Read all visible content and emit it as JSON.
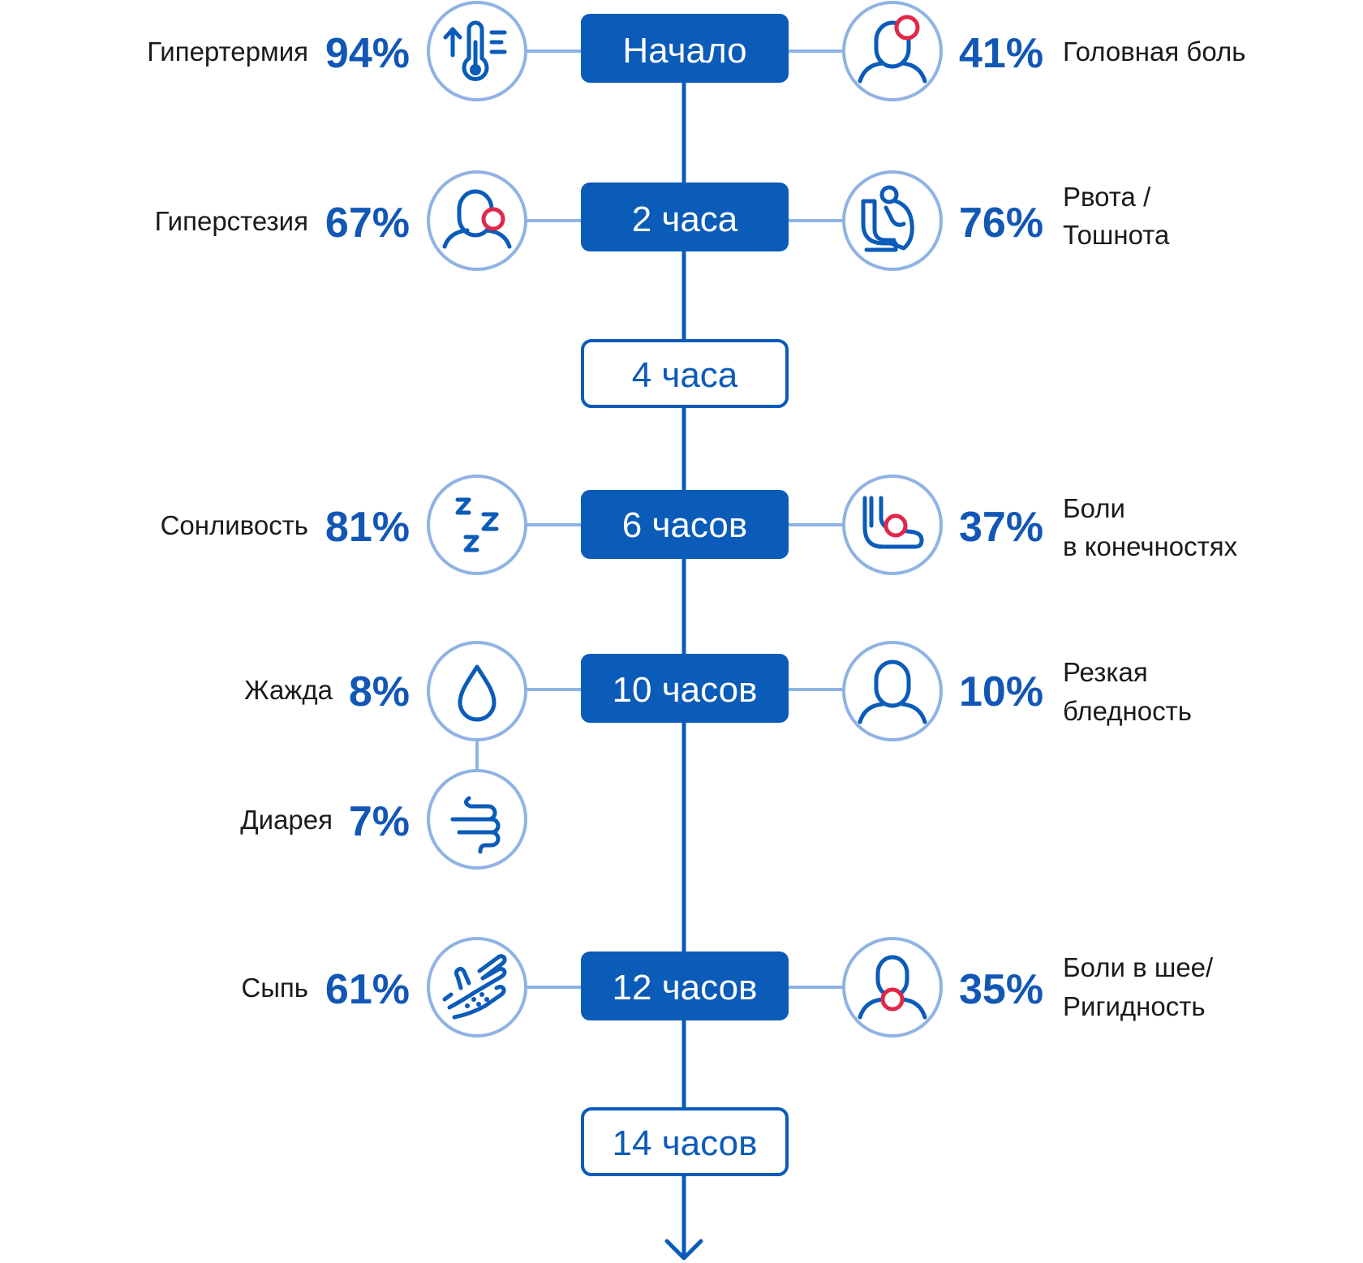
{
  "colors": {
    "primary": "#0b5bb8",
    "connector": "#8fb3e3",
    "accent": "#e0294a",
    "text": "#1a1a1a",
    "percent": "#1257b5"
  },
  "stages": [
    {
      "label": "Начало",
      "style": "filled"
    },
    {
      "label": "2 часа",
      "style": "filled"
    },
    {
      "label": "4 часа",
      "style": "outline"
    },
    {
      "label": "6 часов",
      "style": "filled"
    },
    {
      "label": "10 часов",
      "style": "filled"
    },
    {
      "label": "12 часов",
      "style": "filled"
    },
    {
      "label": "14 часов",
      "style": "outline"
    }
  ],
  "symptoms": {
    "hyperthermia": {
      "label": [
        "Гипертермия"
      ],
      "percent": "94%",
      "icon": "thermometer-icon"
    },
    "headache": {
      "label": [
        "Головная боль"
      ],
      "percent": "41%",
      "icon": "headache-icon"
    },
    "hyperesthesia": {
      "label": [
        "Гиперстезия"
      ],
      "percent": "67%",
      "icon": "person-pain-icon"
    },
    "vomiting": {
      "label": [
        "Рвота /",
        "Тошнота"
      ],
      "percent": "76%",
      "icon": "vomiting-icon"
    },
    "drowsiness": {
      "label": [
        "Сонливость"
      ],
      "percent": "81%",
      "icon": "sleep-zzz-icon"
    },
    "limb_pain": {
      "label": [
        "Боли",
        "в конечностях"
      ],
      "percent": "37%",
      "icon": "leg-pain-icon"
    },
    "thirst": {
      "label": [
        "Жажда"
      ],
      "percent": "8%",
      "icon": "water-drop-icon"
    },
    "pallor": {
      "label": [
        "Резкая",
        "бледность"
      ],
      "percent": "10%",
      "icon": "person-icon"
    },
    "diarrhea": {
      "label": [
        "Диарея"
      ],
      "percent": "7%",
      "icon": "intestine-icon"
    },
    "rash": {
      "label": [
        "Сыпь"
      ],
      "percent": "61%",
      "icon": "hand-rash-icon"
    },
    "neck_pain": {
      "label": [
        "Боли в шее/",
        "Ригидность"
      ],
      "percent": "35%",
      "icon": "neck-pain-icon"
    }
  }
}
